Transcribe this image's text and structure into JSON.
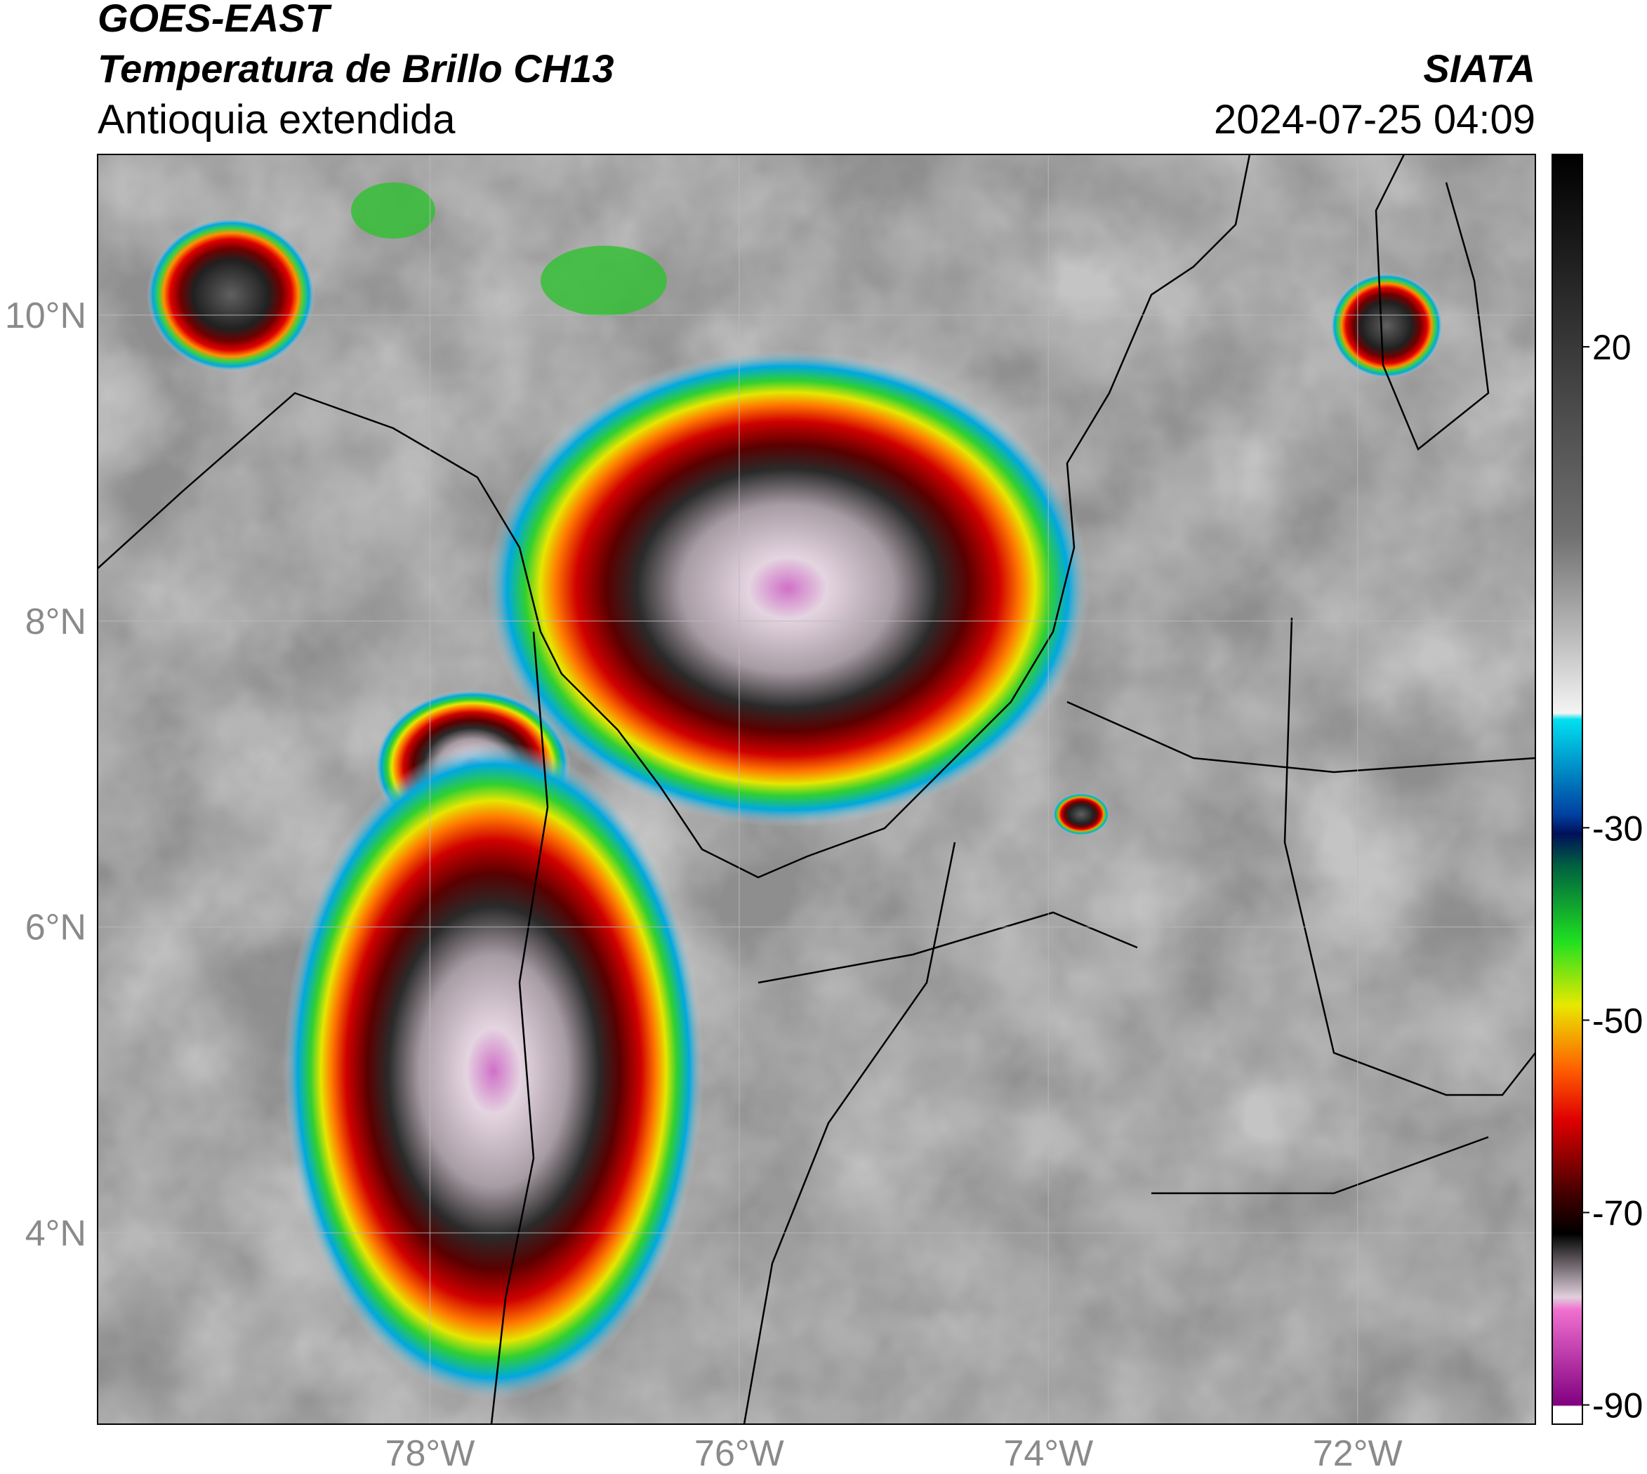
{
  "header": {
    "satellite": "GOES-EAST",
    "product": "Temperatura de Brillo CH13",
    "region": "Antioquia extendida",
    "source": "SIATA",
    "datetime": "2024-07-25 04:09"
  },
  "map": {
    "xlim": [
      -80.15,
      -70.85
    ],
    "ylim": [
      2.75,
      11.05
    ],
    "xticks": [
      {
        "value": -78,
        "label": "78°W"
      },
      {
        "value": -76,
        "label": "76°W"
      },
      {
        "value": -74,
        "label": "74°W"
      },
      {
        "value": -72,
        "label": "72°W"
      }
    ],
    "yticks": [
      {
        "value": 10,
        "label": "10°N"
      },
      {
        "value": 8,
        "label": "8°N"
      },
      {
        "value": 6,
        "label": "6°N"
      },
      {
        "value": 4,
        "label": "4°N"
      }
    ],
    "grid": true
  },
  "colorbar": {
    "lim": [
      -92,
      40
    ],
    "ticks": [
      20,
      -30,
      -50,
      -70,
      -90
    ]
  }
}
